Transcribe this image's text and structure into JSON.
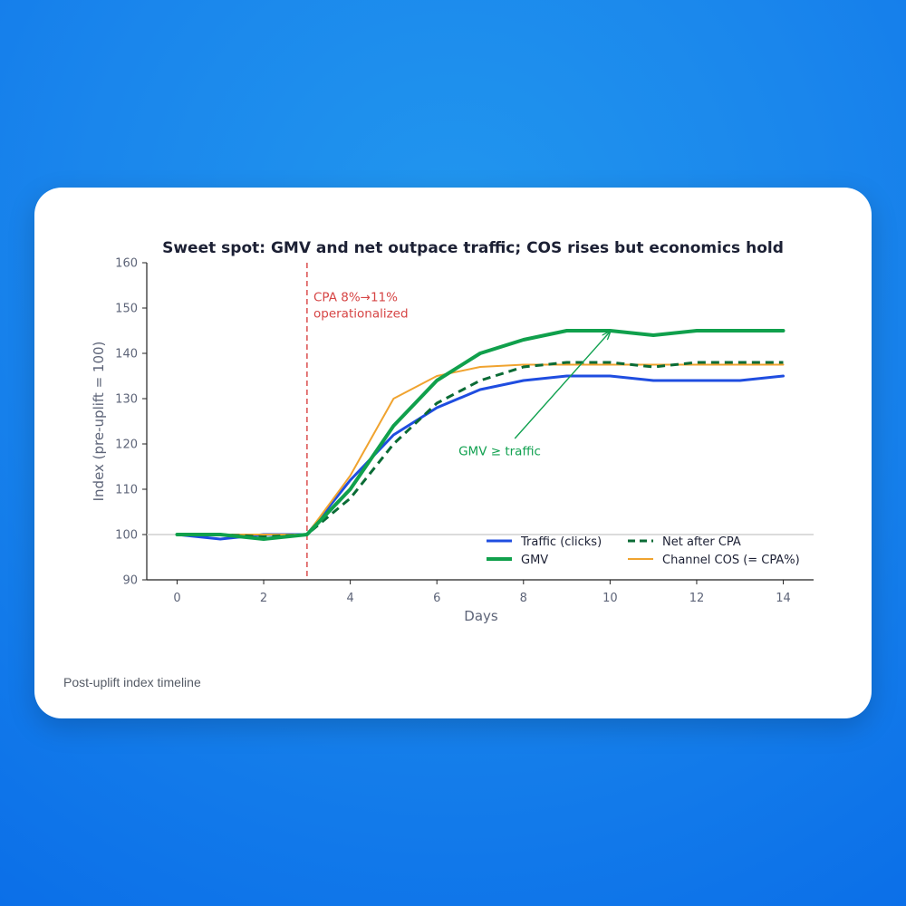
{
  "card": {
    "caption": "Post-uplift index timeline"
  },
  "chart_data": {
    "type": "line",
    "title": "Sweet spot: GMV and net outpace traffic; COS rises but economics hold",
    "xlabel": "Days",
    "ylabel": "Index (pre-uplift = 100)",
    "xlim": [
      -0.7,
      14.7
    ],
    "ylim": [
      90,
      160
    ],
    "xticks": [
      0,
      2,
      4,
      6,
      8,
      10,
      12,
      14
    ],
    "yticks": [
      90,
      100,
      110,
      120,
      130,
      140,
      150,
      160
    ],
    "x": [
      0,
      1,
      2,
      3,
      4,
      5,
      6,
      7,
      8,
      9,
      10,
      11,
      12,
      13,
      14
    ],
    "baseline": 100,
    "event_line": {
      "x": 3,
      "color": "#e06666"
    },
    "series": [
      {
        "name": "Traffic (clicks)",
        "color": "#1f4de0",
        "width": 3,
        "dash": "",
        "values": [
          100,
          99,
          100,
          100,
          112,
          122,
          128,
          132,
          134,
          135,
          135,
          134,
          134,
          134,
          135
        ]
      },
      {
        "name": "GMV",
        "color": "#10a04c",
        "width": 4,
        "dash": "",
        "values": [
          100,
          100,
          99,
          100,
          110,
          124,
          134,
          140,
          143,
          145,
          145,
          144,
          145,
          145,
          145
        ]
      },
      {
        "name": "Net after CPA",
        "color": "#0a6b35",
        "width": 3,
        "dash": "9,6",
        "values": [
          100,
          100,
          99.5,
          100,
          108,
          120,
          129,
          134,
          137,
          138,
          138,
          137,
          138,
          138,
          138
        ]
      },
      {
        "name": "Channel COS (= CPA%)",
        "color": "#f0a32f",
        "width": 2,
        "dash": "",
        "values": [
          100,
          100,
          100,
          100,
          113,
          130,
          135,
          137,
          137.5,
          137.5,
          137.5,
          137.5,
          137.5,
          137.5,
          137.5
        ]
      }
    ],
    "legend": {
      "placement": "lower-right",
      "columns": 2
    },
    "annotations": [
      {
        "id": "cpa",
        "text_lines": [
          "CPA 8%→11%",
          "operationalized"
        ],
        "x": 3.15,
        "y": 151.5,
        "color": "#d64545"
      },
      {
        "id": "gmv",
        "text": "GMV ≥ traffic",
        "x": 6.5,
        "y": 118.5,
        "arrow_from": [
          7.8,
          121.2
        ],
        "arrow_to": [
          10,
          144.8
        ],
        "color": "#11a150"
      }
    ],
    "grid": false
  }
}
